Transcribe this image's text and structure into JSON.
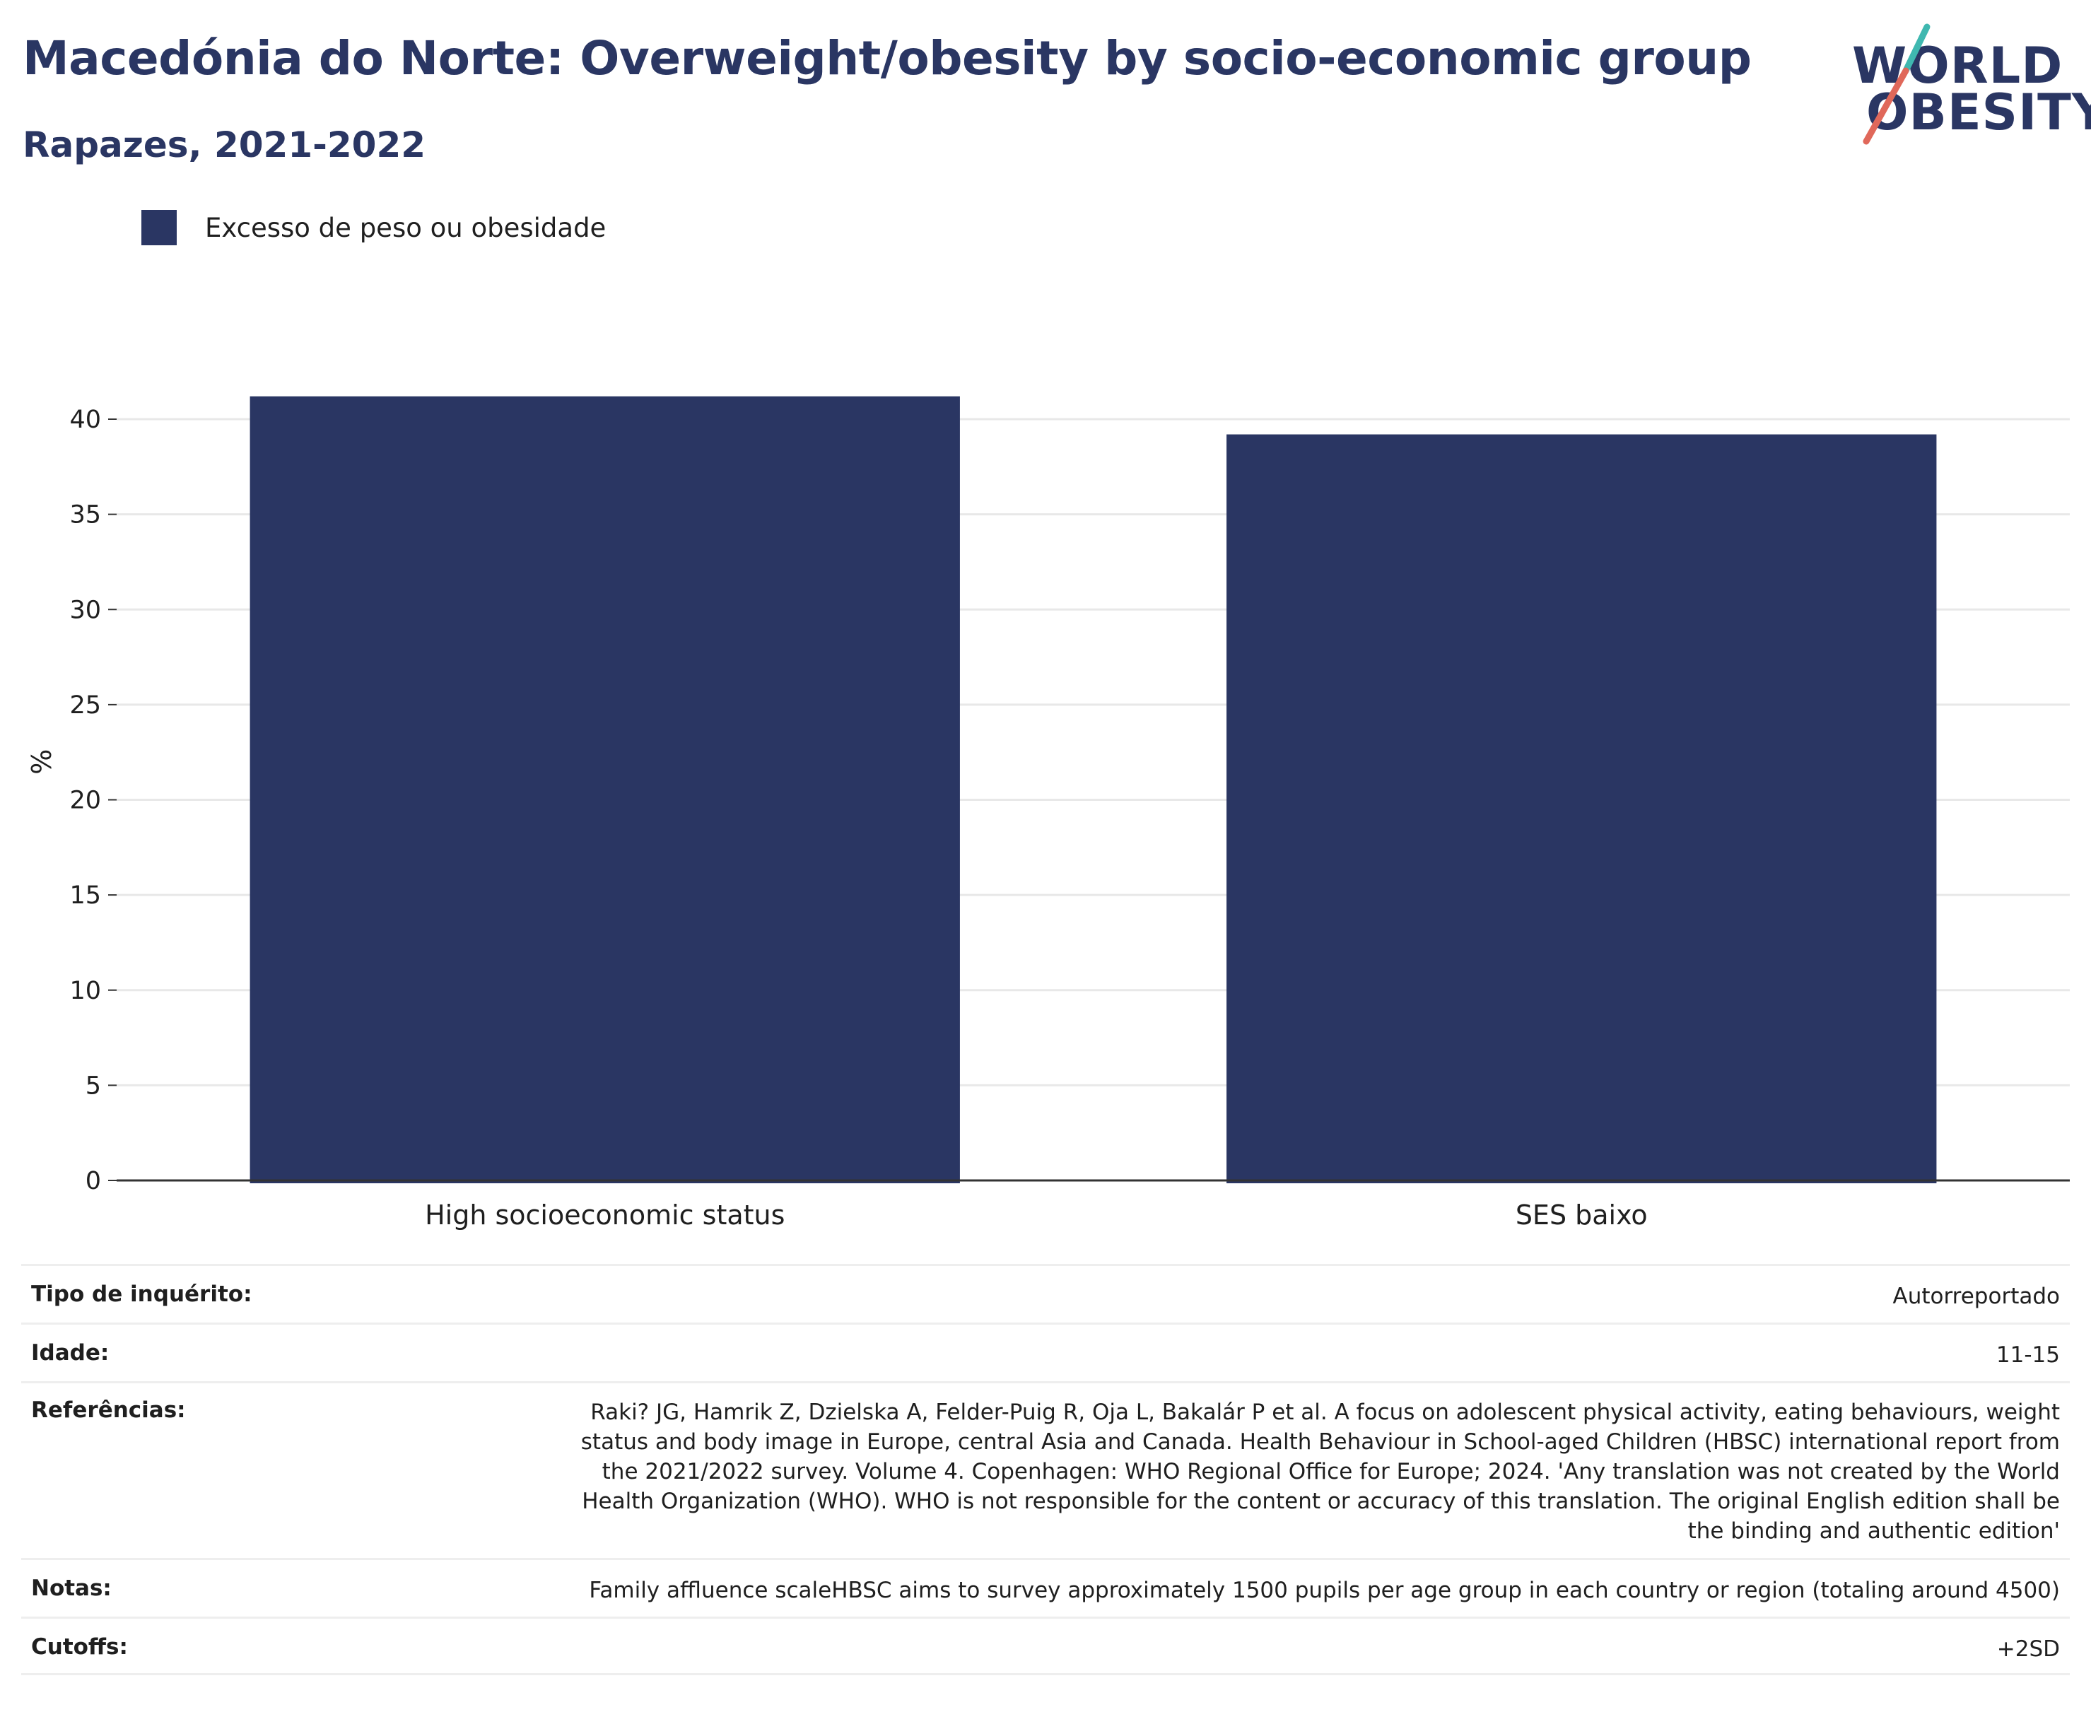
{
  "header": {
    "title": "Macedónia do Norte: Overweight/obesity by socio-economic group",
    "subtitle": "Rapazes, 2021-2022"
  },
  "logo": {
    "line1": "WORLD",
    "line2": "OBESITY",
    "text_color": "#2a3663",
    "slash_colors": [
      "#3fb8b0",
      "#e0685a"
    ]
  },
  "legend": {
    "label": "Excesso de peso ou obesidade",
    "color": "#2a3663"
  },
  "chart_data": {
    "type": "bar",
    "categories": [
      "High socioeconomic status",
      "SES baixo"
    ],
    "series": [
      {
        "name": "Excesso de peso ou obesidade",
        "values": [
          41.2,
          39.2
        ],
        "color": "#2a3663"
      }
    ],
    "title": "Macedónia do Norte: Overweight/obesity by socio-economic group",
    "subtitle": "Rapazes, 2021-2022",
    "ylabel": "%",
    "xlabel": "",
    "ylim": [
      0,
      43
    ],
    "yticks": [
      0,
      5,
      10,
      15,
      20,
      25,
      30,
      35,
      40
    ],
    "grid": true,
    "legend_position": "top-left"
  },
  "info": [
    {
      "label": "Tipo de inquérito:",
      "value": "Autorreportado"
    },
    {
      "label": "Idade:",
      "value": "11-15"
    },
    {
      "label": "Referências:",
      "value": "Raki? JG, Hamrik Z, Dzielska A, Felder-Puig R, Oja L, Bakalár P et al. A focus on adolescent physical activity, eating behaviours, weight status and body image in Europe, central Asia and Canada. Health Behaviour in School-aged Children (HBSC) international report from the 2021/2022 survey. Volume 4. Copenhagen: WHO Regional Office for Europe; 2024. 'Any translation was not created by the World Health Organization (WHO). WHO is not responsible for the content or accuracy of this translation. The original English edition shall be the binding and authentic edition'"
    },
    {
      "label": "Notas:",
      "value": "Family affluence scaleHBSC aims to survey approximately 1500 pupils per age group in each country or region (totaling around 4500)"
    },
    {
      "label": "Cutoffs:",
      "value": "+2SD"
    }
  ]
}
